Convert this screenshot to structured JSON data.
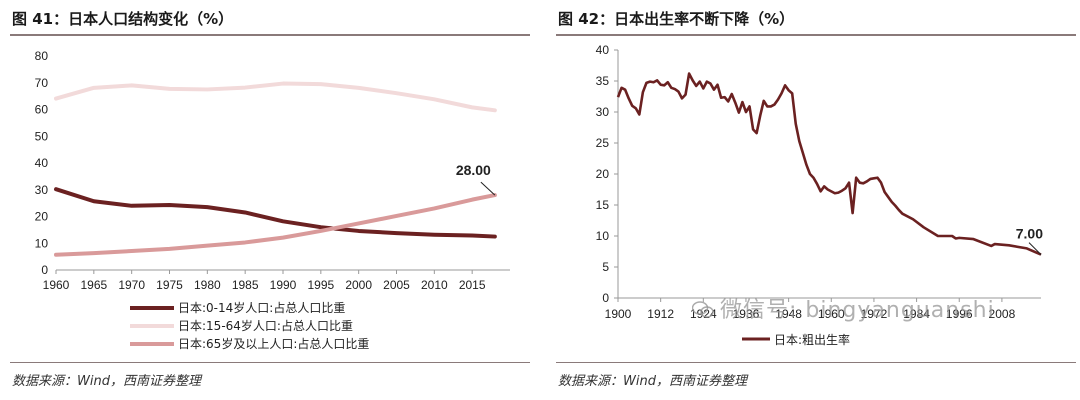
{
  "left": {
    "title": "图 41：日本人口结构变化（%）",
    "source": "数据来源：Wind，西南证券整理",
    "callout_label": "28.00",
    "colors": {
      "young": "#6b2121",
      "working": "#f2dada",
      "elderly": "#d99a9a"
    },
    "chart_data": {
      "type": "line",
      "xlim": [
        1960,
        2020
      ],
      "ylim": [
        0,
        80
      ],
      "x_ticks": [
        "1960",
        "1965",
        "1970",
        "1975",
        "1980",
        "1985",
        "1990",
        "1995",
        "2000",
        "2005",
        "2010",
        "2015"
      ],
      "y_ticks": [
        "0",
        "10",
        "20",
        "30",
        "40",
        "50",
        "60",
        "70",
        "80"
      ],
      "x": [
        1960,
        1965,
        1970,
        1975,
        1980,
        1985,
        1990,
        1995,
        2000,
        2005,
        2010,
        2015,
        2018
      ],
      "series": [
        {
          "name": "日本:0-14岁人口:占总人口比重",
          "values": [
            30.2,
            25.7,
            24.0,
            24.3,
            23.5,
            21.5,
            18.2,
            16.0,
            14.6,
            13.8,
            13.2,
            12.9,
            12.5
          ]
        },
        {
          "name": "日本:15-64岁人口:占总人口比重",
          "values": [
            64.1,
            68.1,
            69.0,
            67.7,
            67.5,
            68.2,
            69.7,
            69.5,
            68.1,
            66.1,
            63.8,
            60.8,
            59.7
          ]
        },
        {
          "name": "日本:65岁及以上人口:占总人口比重",
          "values": [
            5.7,
            6.3,
            7.1,
            7.9,
            9.1,
            10.3,
            12.1,
            14.6,
            17.4,
            20.2,
            23.0,
            26.3,
            28.0
          ]
        }
      ]
    }
  },
  "right": {
    "title": "图 42：日本出生率不断下降（%）",
    "source": "数据来源：Wind，西南证券整理",
    "callout_label": "7.00",
    "legend_label": "日本:粗出生率",
    "color": "#6b2121",
    "watermark": "微信号: bingyanguanshi",
    "chart_data": {
      "type": "line",
      "xlim": [
        1900,
        2019
      ],
      "ylim": [
        0,
        40
      ],
      "x_ticks": [
        "1900",
        "1912",
        "1924",
        "1936",
        "1948",
        "1960",
        "1972",
        "1984",
        "1996",
        "2008"
      ],
      "y_ticks": [
        "0",
        "5",
        "10",
        "15",
        "20",
        "25",
        "30",
        "35",
        "40"
      ],
      "series": [
        {
          "name": "日本:粗出生率",
          "x": [
            1900,
            1901,
            1902,
            1903,
            1904,
            1905,
            1906,
            1907,
            1908,
            1909,
            1910,
            1911,
            1912,
            1913,
            1914,
            1915,
            1916,
            1917,
            1918,
            1919,
            1920,
            1921,
            1922,
            1923,
            1924,
            1925,
            1926,
            1927,
            1928,
            1929,
            1930,
            1931,
            1932,
            1933,
            1934,
            1935,
            1936,
            1937,
            1938,
            1939,
            1940,
            1941,
            1942,
            1943,
            1944,
            1945,
            1946,
            1947,
            1948,
            1949,
            1950,
            1951,
            1952,
            1953,
            1954,
            1955,
            1956,
            1957,
            1958,
            1959,
            1960,
            1961,
            1962,
            1963,
            1964,
            1965,
            1966,
            1967,
            1968,
            1969,
            1970,
            1971,
            1972,
            1973,
            1974,
            1975,
            1976,
            1977,
            1978,
            1979,
            1980,
            1983,
            1986,
            1990,
            1994,
            1995,
            1996,
            2000,
            2005,
            2006,
            2010,
            2015,
            2019
          ],
          "values": [
            32.4,
            33.9,
            33.6,
            32.2,
            31.0,
            30.6,
            29.6,
            33.2,
            34.7,
            34.9,
            34.8,
            35.1,
            34.4,
            34.3,
            34.8,
            33.9,
            33.7,
            33.3,
            32.2,
            32.8,
            36.2,
            35.1,
            34.2,
            34.9,
            33.8,
            34.9,
            34.6,
            33.6,
            34.4,
            32.3,
            32.4,
            31.7,
            32.9,
            31.5,
            29.9,
            31.6,
            30.0,
            30.9,
            27.2,
            26.6,
            29.4,
            31.8,
            30.9,
            30.9,
            31.2,
            32.0,
            33.0,
            34.3,
            33.5,
            33.0,
            28.1,
            25.3,
            23.4,
            21.5,
            20.0,
            19.4,
            18.4,
            17.2,
            18.0,
            17.5,
            17.2,
            16.9,
            17.0,
            17.3,
            17.7,
            18.6,
            13.7,
            19.4,
            18.6,
            18.5,
            18.8,
            19.2,
            19.3,
            19.4,
            18.6,
            17.1,
            16.3,
            15.5,
            14.9,
            14.2,
            13.6,
            12.7,
            11.4,
            10.0,
            10.0,
            9.6,
            9.7,
            9.5,
            8.4,
            8.7,
            8.5,
            8.0,
            7.0
          ]
        }
      ]
    }
  }
}
